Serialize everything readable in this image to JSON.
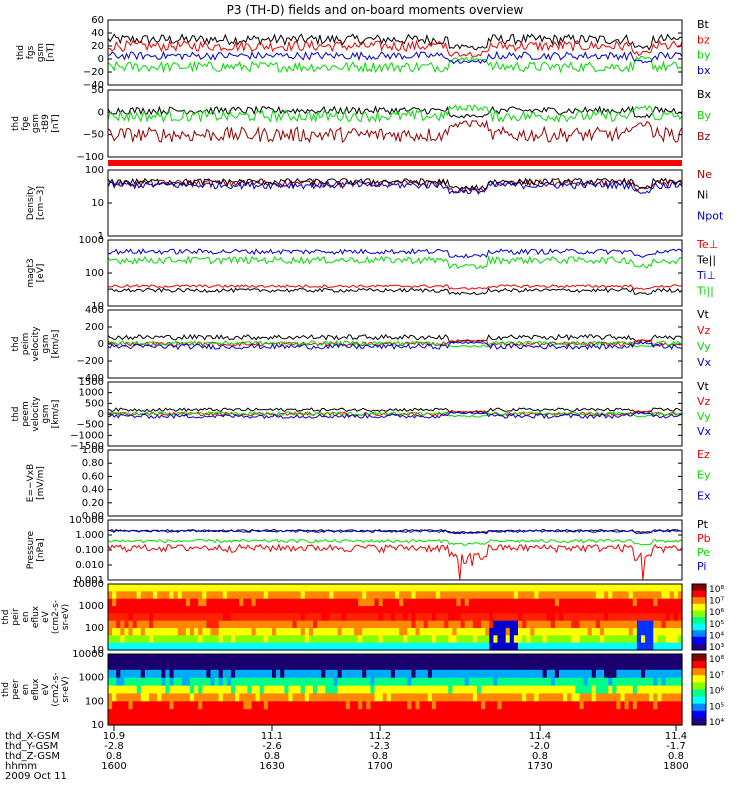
{
  "title": "P3 (TH-D) fields and on-board moments overview",
  "colors": {
    "black": "#000000",
    "red": "#ee0000",
    "darkred": "#990000",
    "blue": "#0000cc",
    "green": "#00dd00",
    "frame": "#000000"
  },
  "x_axis": {
    "label_rows": [
      "thd_X-GSM",
      "thd_Y-GSM",
      "thd_Z-GSM",
      "hhmm",
      "2009 Oct 11"
    ],
    "ticks": [
      {
        "x": "10.9",
        "y": "-2.8",
        "z": "0.8",
        "t": "1600"
      },
      {
        "x": "11.1",
        "y": "-2.6",
        "z": "0.8",
        "t": "1630"
      },
      {
        "x": "11.2",
        "y": "-2.3",
        "z": "0.8",
        "t": "1700"
      },
      {
        "x": "11.4",
        "y": "-2.0",
        "z": "0.8",
        "t": "1730"
      },
      {
        "x": "11.4",
        "y": "-1.7",
        "z": "0.8",
        "t": "1800"
      }
    ]
  },
  "chart_data": [
    {
      "type": "line",
      "panel": "fgs",
      "ylabel": [
        "thd",
        "fgs",
        "gsm",
        "[nT]"
      ],
      "ylim": [
        -40,
        60
      ],
      "yticks": [
        "60",
        "40",
        "20",
        "0",
        "−20",
        "−40"
      ],
      "series": [
        {
          "name": "Bt",
          "color": "#000000",
          "base": 30,
          "amp": 8
        },
        {
          "name": "bz",
          "color": "#ee0000",
          "base": 20,
          "amp": 8
        },
        {
          "name": "by",
          "color": "#00dd00",
          "base": -12,
          "amp": 8
        },
        {
          "name": "bx",
          "color": "#0000cc",
          "base": 5,
          "amp": 6
        }
      ]
    },
    {
      "type": "line",
      "panel": "fge",
      "ylabel": [
        "thd",
        "fge",
        "gsm",
        "-tB9",
        "[nT]"
      ],
      "ylim": [
        -120,
        60
      ],
      "yticks": [
        "50",
        "0",
        "−50",
        "−100"
      ],
      "series": [
        {
          "name": "Bx",
          "color": "#000000",
          "base": 5,
          "amp": 10
        },
        {
          "name": "By",
          "color": "#00dd00",
          "base": -10,
          "amp": 15
        },
        {
          "name": "Bz",
          "color": "#990000",
          "base": -60,
          "amp": 20
        }
      ]
    },
    {
      "type": "line",
      "panel": "density",
      "ylabel": [
        "Density",
        "[cm−3]"
      ],
      "ylim": [
        1,
        100
      ],
      "log": true,
      "yticks": [
        "100",
        "10",
        "1"
      ],
      "series": [
        {
          "name": "Ne",
          "color": "#990000",
          "base": 40,
          "amp": 10
        },
        {
          "name": "Ni",
          "color": "#000000",
          "base": 45,
          "amp": 10
        },
        {
          "name": "Npot",
          "color": "#0000cc",
          "base": 35,
          "amp": 8
        }
      ]
    },
    {
      "type": "line",
      "panel": "temperature",
      "ylabel": [
        "magt3",
        "[eV]"
      ],
      "ylim": [
        10,
        1000
      ],
      "log": true,
      "yticks": [
        "1000",
        "100",
        "10"
      ],
      "series": [
        {
          "name": "Te⊥",
          "color": "#ee0000",
          "base": 40,
          "amp": 4
        },
        {
          "name": "Te||",
          "color": "#000000",
          "base": 30,
          "amp": 4
        },
        {
          "name": "Ti⊥",
          "color": "#0000cc",
          "base": 450,
          "amp": 80
        },
        {
          "name": "Ti||",
          "color": "#00dd00",
          "base": 250,
          "amp": 60
        }
      ]
    },
    {
      "type": "line",
      "panel": "peim_velocity",
      "ylabel": [
        "thd",
        "peim",
        "velocity",
        "gsm",
        "[km/s]"
      ],
      "ylim": [
        -400,
        400
      ],
      "yticks": [
        "400",
        "200",
        "0",
        "−200",
        "−400"
      ],
      "series": [
        {
          "name": "Vt",
          "color": "#000000",
          "base": 80,
          "amp": 30
        },
        {
          "name": "Vz",
          "color": "#ee0000",
          "base": 0,
          "amp": 25
        },
        {
          "name": "Vy",
          "color": "#00dd00",
          "base": 10,
          "amp": 25
        },
        {
          "name": "Vx",
          "color": "#0000cc",
          "base": -30,
          "amp": 30
        }
      ]
    },
    {
      "type": "line",
      "panel": "peem_velocity",
      "ylabel": [
        "thd",
        "peem",
        "velocity",
        "gsm",
        "[km/s]"
      ],
      "ylim": [
        -1500,
        1500
      ],
      "yticks": [
        "1500",
        "1000",
        "500",
        "0",
        "−500",
        "−1000",
        "−1500"
      ],
      "series": [
        {
          "name": "Vt",
          "color": "#000000",
          "base": 200,
          "amp": 80
        },
        {
          "name": "Vz",
          "color": "#ee0000",
          "base": 0,
          "amp": 80
        },
        {
          "name": "Vy",
          "color": "#00dd00",
          "base": 20,
          "amp": 80
        },
        {
          "name": "Vx",
          "color": "#0000cc",
          "base": -100,
          "amp": 100
        }
      ]
    },
    {
      "type": "line",
      "panel": "efield",
      "ylabel": [
        "E=−VxB",
        "[mV/m]"
      ],
      "ylim": [
        0,
        1
      ],
      "yticks": [
        "1.00",
        "0.80",
        "0.60",
        "0.40",
        "0.20",
        "0.00"
      ],
      "series": [
        {
          "name": "Ez",
          "color": "#ee0000",
          "values": []
        },
        {
          "name": "Ey",
          "color": "#00dd00",
          "values": []
        },
        {
          "name": "Ex",
          "color": "#0000cc",
          "values": []
        }
      ]
    },
    {
      "type": "line",
      "panel": "pressure",
      "ylabel": [
        "Pressure",
        "[nPa]"
      ],
      "ylim": [
        0.001,
        10
      ],
      "log": true,
      "yticks": [
        "10.000",
        "1.000",
        "0.100",
        "0.010",
        "0.001"
      ],
      "series": [
        {
          "name": "Pt",
          "color": "#000000",
          "base": 2.0,
          "amp": 0.3
        },
        {
          "name": "Pb",
          "color": "#ee0000",
          "base": 0.15,
          "amp": 0.08
        },
        {
          "name": "Pe",
          "color": "#00dd00",
          "base": 0.4,
          "amp": 0.1
        },
        {
          "name": "Pi",
          "color": "#0000cc",
          "base": 1.8,
          "amp": 0.3
        }
      ]
    },
    {
      "type": "heatmap",
      "panel": "peir_spectrogram",
      "ylabel": [
        "thd",
        "peir",
        "en",
        "eflux",
        "eV",
        "(cm2-s-",
        "sr-eV)"
      ],
      "ylim": [
        10,
        10000
      ],
      "log": true,
      "yticks": [
        "10000",
        "1000",
        "100",
        "10"
      ],
      "colorbar_ticks": [
        "10⁸",
        "10⁷",
        "10⁶",
        "10⁵",
        "10⁴",
        "10³"
      ]
    },
    {
      "type": "heatmap",
      "panel": "peer_spectrogram",
      "ylabel": [
        "thd",
        "peer",
        "en",
        "eflux",
        "eV",
        "(cm2-s-",
        "sr-eV)"
      ],
      "ylim": [
        10,
        10000
      ],
      "log": true,
      "yticks": [
        "10000",
        "1000",
        "100",
        "10"
      ],
      "colorbar_ticks": [
        "10⁸",
        "10⁷",
        "10⁶",
        "10⁵",
        "10⁴"
      ]
    }
  ]
}
